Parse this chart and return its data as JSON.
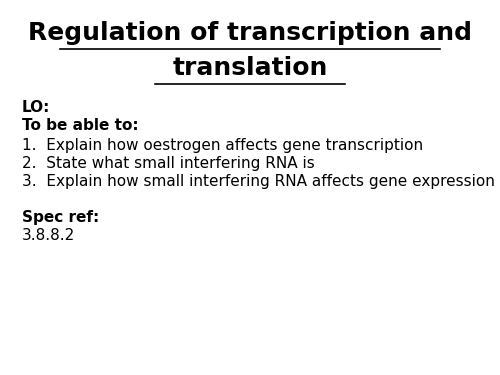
{
  "title_line1": "Regulation of transcription and",
  "title_line2": "translation",
  "background_color": "#ffffff",
  "text_color": "#000000",
  "lo_label": "LO:",
  "to_be_able": "To be able to:",
  "items": [
    "1.  Explain how oestrogen affects gene transcription",
    "2.  State what small interfering RNA is",
    "3.  Explain how small interfering RNA affects gene expression"
  ],
  "spec_ref_label": "Spec ref:",
  "spec_ref_value": "3.8.8.2",
  "title_fontsize": 18,
  "body_fontsize": 11,
  "bold_fontsize": 11
}
